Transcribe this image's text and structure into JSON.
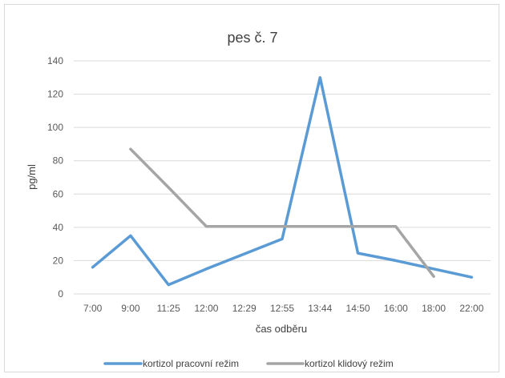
{
  "chart_data": {
    "type": "line",
    "title": "pes č. 7",
    "xlabel": "čas odběru",
    "ylabel": "pg/ml",
    "categories": [
      "7:00",
      "9:00",
      "11:25",
      "12:00",
      "12:29",
      "12:55",
      "13:44",
      "14:50",
      "16:00",
      "18:00",
      "22:00"
    ],
    "yticks": [
      "0",
      "20",
      "40",
      "60",
      "80",
      "100",
      "120",
      "140"
    ],
    "ylim": [
      0,
      140
    ],
    "grid": true,
    "legend_position": "bottom",
    "series": [
      {
        "name": "kortizol pracovní režim",
        "color": "#5B9BD5",
        "values": [
          16,
          35,
          5.5,
          15,
          24,
          33,
          130,
          24.5,
          20,
          15,
          10
        ]
      },
      {
        "name": "kortizol klidový režim",
        "color": "#A5A5A5",
        "values": [
          null,
          87,
          64,
          40.5,
          40.5,
          40.5,
          40.5,
          40.5,
          40.5,
          10.5,
          null
        ]
      }
    ]
  }
}
